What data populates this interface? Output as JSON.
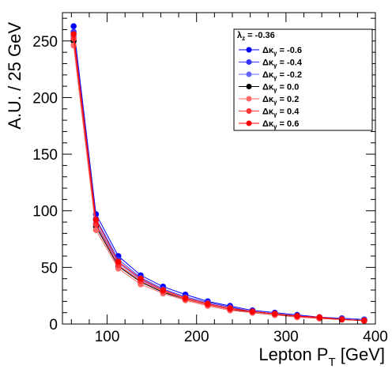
{
  "chart_data": {
    "type": "line",
    "title": "",
    "xlabel_main": "Lepton P",
    "xlabel_sub": "T",
    "xlabel_unit": " [GeV]",
    "ylabel": "A.U. / 25 GeV",
    "xlim": [
      50,
      400
    ],
    "ylim": [
      0,
      275
    ],
    "xticks": [
      100,
      200,
      300,
      400
    ],
    "yticks": [
      0,
      50,
      100,
      150,
      200,
      250
    ],
    "grid": false,
    "legend_position": "top-right",
    "legend_header": "λz = -0.36",
    "legend_header_symbol": "λ",
    "legend_header_sub": "z",
    "legend_header_value": " = -0.36",
    "x": [
      62.5,
      87.5,
      112.5,
      137.5,
      162.5,
      187.5,
      212.5,
      237.5,
      262.5,
      287.5,
      312.5,
      337.5,
      362.5,
      387.5
    ],
    "series": [
      {
        "name": "Δκγ = -0.6",
        "label_symbol": "Δκ",
        "label_sub": "γ",
        "label_value": " = -0.6",
        "color": "#0000ff",
        "values": [
          263,
          97,
          60,
          43,
          33,
          26,
          20,
          16,
          12,
          10,
          8,
          6,
          5,
          4
        ]
      },
      {
        "name": "Δκγ = -0.4",
        "label_symbol": "Δκ",
        "label_sub": "γ",
        "label_value": " = -0.4",
        "color": "#3333ff",
        "values": [
          258,
          93,
          57,
          41,
          31,
          24,
          19,
          15,
          11,
          9,
          7,
          6,
          5,
          4
        ]
      },
      {
        "name": "Δκγ = -0.2",
        "label_symbol": "Δκ",
        "label_sub": "γ",
        "label_value": " = -0.2",
        "color": "#6666ff",
        "values": [
          254,
          89,
          54,
          39,
          30,
          23,
          18,
          14,
          11,
          9,
          7,
          6,
          4,
          3
        ]
      },
      {
        "name": "Δκγ = 0.0",
        "label_symbol": "Δκ",
        "label_sub": "γ",
        "label_value": " = 0.0",
        "color": "#000000",
        "values": [
          250,
          86,
          51,
          37,
          28,
          22,
          17,
          13,
          10,
          8,
          7,
          5,
          4,
          3
        ]
      },
      {
        "name": "Δκγ = 0.2",
        "label_symbol": "Δκ",
        "label_sub": "γ",
        "label_value": " = 0.2",
        "color": "#ff6666",
        "values": [
          246,
          83,
          49,
          35,
          27,
          21,
          16,
          12,
          10,
          8,
          6,
          5,
          4,
          3
        ]
      },
      {
        "name": "Δκγ = 0.4",
        "label_symbol": "Δκ",
        "label_sub": "γ",
        "label_value": " = 0.4",
        "color": "#ff3333",
        "values": [
          252,
          88,
          52,
          38,
          29,
          22,
          17,
          13,
          11,
          9,
          7,
          5,
          4,
          3
        ]
      },
      {
        "name": "Δκγ = 0.6",
        "label_symbol": "Δκ",
        "label_sub": "γ",
        "label_value": " = 0.6",
        "color": "#ff0000",
        "values": [
          256,
          92,
          55,
          40,
          30,
          23,
          18,
          14,
          11,
          9,
          7,
          6,
          4,
          3
        ]
      }
    ]
  }
}
